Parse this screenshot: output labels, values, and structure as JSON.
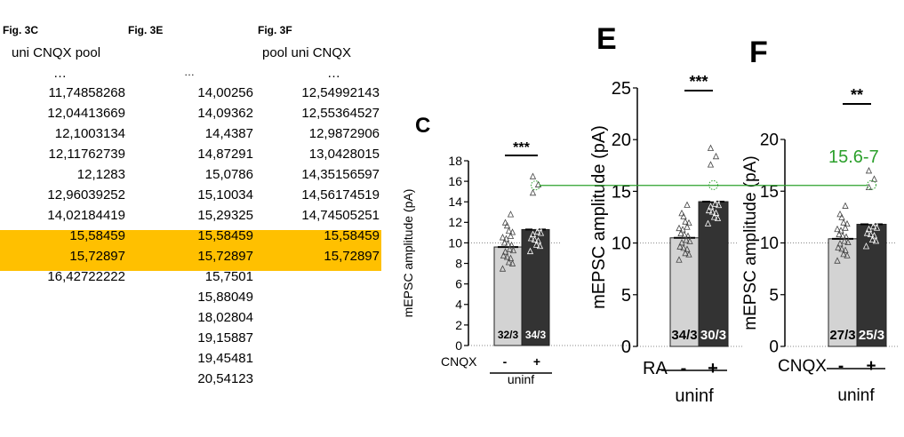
{
  "table": {
    "columns": [
      {
        "header": "Fig. 3C",
        "subtitle": "uni CNQX pool",
        "ellipsis": "…",
        "values": [
          "11,74858268",
          "12,04413669",
          "12,1003134",
          "12,11762739",
          "12,1283",
          "12,96039252",
          "14,02184419",
          "15,58459",
          "15,72897",
          "16,42722222"
        ]
      },
      {
        "header": "Fig. 3E",
        "subtitle": "",
        "ellipsis": "…",
        "values": [
          "14,00256",
          "14,09362",
          "14,4387",
          "14,87291",
          "15,0786",
          "15,10034",
          "15,29325",
          "15,58459",
          "15,72897",
          "15,7501",
          "15,88049",
          "18,02804",
          "19,15887",
          "19,45481",
          "20,54123"
        ]
      },
      {
        "header": "Fig. 3F",
        "subtitle": "pool uni CNQX",
        "ellipsis": "…",
        "values": [
          "12,54992143",
          "12,55364527",
          "12,9872906",
          "13,0428015",
          "14,35156597",
          "14,56174519",
          "14,74505251",
          "15,58459",
          "15,72897"
        ]
      }
    ],
    "highlight_color": "#FFC000"
  },
  "annotation": {
    "text": "15.6-7",
    "color": "#2ca02c"
  },
  "chart_data": [
    {
      "panel": "C",
      "type": "bar",
      "ylabel": "mEPSC amplitude (pA)",
      "ylim": [
        0,
        18
      ],
      "yticks": [
        "0",
        "2",
        "4",
        "6",
        "8",
        "10",
        "12",
        "14",
        "16",
        "18"
      ],
      "x_row_label": "CNQX",
      "categories": [
        "-",
        "+"
      ],
      "group_label": "uninf",
      "values": [
        9.6,
        11.3
      ],
      "n_labels": [
        "32/3",
        "34/3"
      ],
      "bar_colors": [
        "#d3d3d3",
        "#333333"
      ],
      "significance": "***",
      "highlight_value": 15.6
    },
    {
      "panel": "E",
      "type": "bar",
      "ylabel": "mEPSC amplitude (pA)",
      "ylim": [
        0,
        25
      ],
      "yticks": [
        "0",
        "5",
        "10",
        "15",
        "20",
        "25"
      ],
      "x_row_label": "RA",
      "categories": [
        "-",
        "+"
      ],
      "group_label": "uninf",
      "values": [
        10.5,
        14.0
      ],
      "n_labels": [
        "34/3",
        "30/3"
      ],
      "bar_colors": [
        "#d3d3d3",
        "#333333"
      ],
      "significance": "***",
      "highlight_value": 15.6
    },
    {
      "panel": "F",
      "type": "bar",
      "ylabel": "mEPSC amplitude (pA)",
      "ylim": [
        0,
        20
      ],
      "yticks": [
        "0",
        "5",
        "10",
        "15",
        "20"
      ],
      "x_row_label": "CNQX",
      "categories": [
        "-",
        "+"
      ],
      "group_label": "uninf",
      "values": [
        10.4,
        11.8
      ],
      "n_labels": [
        "27/3",
        "25/3"
      ],
      "bar_colors": [
        "#d3d3d3",
        "#333333"
      ],
      "significance": "**",
      "highlight_value": 15.6
    }
  ]
}
